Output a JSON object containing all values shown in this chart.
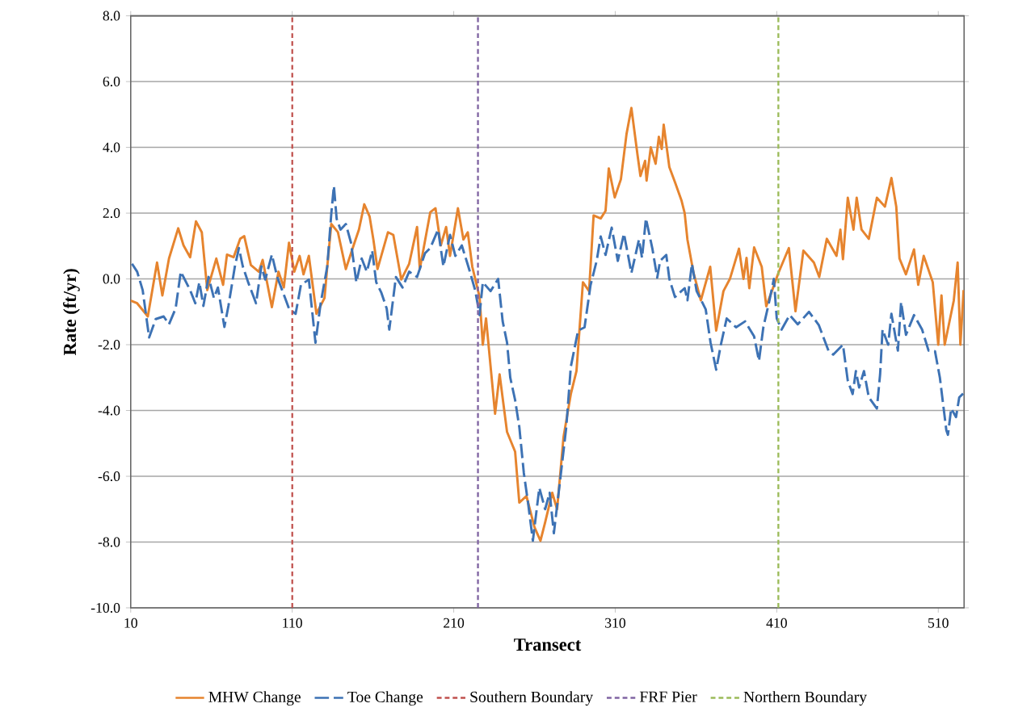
{
  "chart_data": {
    "type": "line",
    "xlabel": "Transect",
    "ylabel": "Rate (ft/yr)",
    "xlim": [
      10,
      526
    ],
    "xticks": [
      10,
      110,
      210,
      310,
      410,
      510
    ],
    "ylim": [
      -10,
      8
    ],
    "yticks": [
      {
        "value": -10,
        "label": "-10.0"
      },
      {
        "value": -8,
        "label": "-8.0"
      },
      {
        "value": -6,
        "label": "-6.0"
      },
      {
        "value": -4,
        "label": "-4.0"
      },
      {
        "value": -2,
        "label": "-2.0"
      },
      {
        "value": 0,
        "label": "0.0"
      },
      {
        "value": 2,
        "label": "2.0"
      },
      {
        "value": 4,
        "label": "4.0"
      },
      {
        "value": 6,
        "label": "6.0"
      },
      {
        "value": 8,
        "label": "8.0"
      }
    ],
    "grid": "y",
    "legend": "bottom",
    "marker": "none",
    "series": [
      {
        "name": "MHW Change",
        "color": "#e6842e",
        "line_style": "solid",
        "x": [
          10,
          14,
          20.6,
          26.3,
          29.6,
          33.7,
          39.4,
          42.7,
          46.8,
          50.4,
          54,
          57.4,
          63,
          67.2,
          69.6,
          73.7,
          77.8,
          80.3,
          84.4,
          89.3,
          91.7,
          97.4,
          101.5,
          104.8,
          108,
          111.3,
          114.6,
          117,
          120.3,
          125,
          130,
          131.7,
          134.2,
          138.3,
          143.2,
          148,
          151.3,
          154.6,
          157.9,
          160.3,
          162.8,
          169.3,
          172.6,
          177.5,
          182.4,
          187.3,
          189,
          195.5,
          198.7,
          202,
          205.3,
          207.7,
          212.6,
          216,
          218.7,
          221.5,
          226,
          228,
          230,
          235.6,
          238.4,
          243,
          248,
          250.6,
          255,
          260,
          263.7,
          266.6,
          271,
          274,
          278,
          282.5,
          286,
          290,
          293.8,
          296.6,
          301,
          304,
          306,
          309.7,
          313.5,
          317,
          320,
          323.8,
          325.6,
          328.5,
          329.4,
          332,
          335,
          337,
          338.8,
          340,
          343.5,
          347,
          351,
          353,
          354.7,
          358.5,
          363,
          368.8,
          372.5,
          377,
          381,
          386.6,
          389.4,
          391.3,
          393,
          396,
          400.7,
          403.5,
          407,
          411,
          417.5,
          421.6,
          426.5,
          433,
          436.3,
          441,
          447,
          449.4,
          451,
          454,
          457.5,
          459.5,
          462.5,
          467,
          472,
          477,
          481,
          484,
          486,
          490,
          495,
          497.6,
          501,
          506.6,
          510,
          512,
          514,
          519.6,
          522,
          523.7,
          525.7
        ],
        "values": [
          -0.66,
          -0.74,
          -1.14,
          0.5,
          -0.5,
          0.62,
          1.54,
          1.02,
          0.66,
          1.75,
          1.42,
          -0.34,
          0.62,
          -0.18,
          0.74,
          0.66,
          1.22,
          1.3,
          0.42,
          0.22,
          0.58,
          -0.86,
          0.22,
          -0.26,
          1.1,
          0.22,
          0.7,
          0.14,
          0.7,
          -1.06,
          -0.58,
          0.38,
          1.67,
          1.42,
          0.3,
          1.02,
          1.5,
          2.27,
          1.9,
          1.18,
          0.3,
          1.42,
          1.34,
          -0.02,
          0.46,
          1.58,
          0.3,
          2.03,
          2.15,
          1.02,
          1.58,
          0.7,
          2.15,
          1.2,
          1.42,
          0.37,
          -0.55,
          -2.0,
          -1.2,
          -4.1,
          -2.9,
          -4.65,
          -5.25,
          -6.8,
          -6.6,
          -7.55,
          -7.96,
          -7.4,
          -6.5,
          -7.0,
          -4.8,
          -3.5,
          -2.8,
          -0.1,
          -0.37,
          1.93,
          1.84,
          2.07,
          3.36,
          2.48,
          3.03,
          4.41,
          5.2,
          3.77,
          3.13,
          3.59,
          2.99,
          4.0,
          3.5,
          4.32,
          3.95,
          4.69,
          3.4,
          2.94,
          2.39,
          2.0,
          1.2,
          0.18,
          -0.65,
          0.37,
          -1.57,
          -0.37,
          0.0,
          0.92,
          0.0,
          0.64,
          -0.28,
          0.96,
          0.37,
          -0.83,
          -0.37,
          0.18,
          0.94,
          -0.98,
          0.86,
          0.5,
          0.06,
          1.22,
          0.7,
          1.5,
          0.6,
          2.47,
          1.5,
          2.47,
          1.5,
          1.22,
          2.47,
          2.2,
          3.07,
          2.2,
          0.62,
          0.14,
          0.9,
          -0.18,
          0.7,
          -0.1,
          -2.0,
          -0.5,
          -2.0,
          -0.66,
          0.5,
          -2.0,
          -0.34
        ]
      },
      {
        "name": "Toe Change",
        "color": "#3d72b4",
        "line_style": "dashed",
        "x": [
          10.8,
          14,
          17.4,
          21.4,
          25.5,
          30.4,
          33.7,
          37.8,
          41,
          46.8,
          50,
          52.5,
          55,
          58.2,
          61.5,
          64,
          68,
          70.5,
          74.5,
          77,
          79.4,
          82.7,
          87.6,
          90.9,
          93.3,
          97.4,
          100.7,
          105.6,
          108,
          112.1,
          115.4,
          120.3,
          124.4,
          127.6,
          131.7,
          134.2,
          135.8,
          137.5,
          139.9,
          143.2,
          146.4,
          149.7,
          153,
          156.2,
          159.5,
          162,
          165.2,
          168.5,
          170.1,
          174.2,
          178.3,
          182.4,
          187.3,
          192.2,
          195.5,
          200.3,
          203.6,
          207.7,
          211,
          215,
          219.7,
          223.4,
          226,
          228,
          232.8,
          237.5,
          240.3,
          243,
          245,
          248,
          250.6,
          253.4,
          256,
          259,
          263,
          266.6,
          269.4,
          272,
          276,
          279.7,
          282.5,
          287,
          291,
          294.7,
          298.5,
          301,
          304,
          307.8,
          311.6,
          315.4,
          320,
          324.7,
          326.6,
          329,
          333,
          336,
          337.8,
          341.6,
          343.5,
          347,
          353,
          354.7,
          357.5,
          360.4,
          366,
          369,
          372.5,
          375.4,
          379,
          384.8,
          390.4,
          396,
          399,
          401.7,
          405.5,
          408.2,
          410,
          413,
          418,
          423,
          430,
          436,
          442,
          445,
          451,
          454,
          457,
          459,
          461,
          464,
          467,
          472,
          474,
          475.5,
          479,
          481,
          485,
          487,
          490,
          495,
          500,
          504,
          508,
          511,
          515,
          516,
          518,
          521,
          523,
          526
        ],
        "values": [
          0.46,
          0.22,
          -0.34,
          -1.78,
          -1.22,
          -1.14,
          -1.38,
          -0.9,
          0.22,
          -0.34,
          -0.74,
          -0.1,
          -0.82,
          0.06,
          -0.58,
          -0.26,
          -1.46,
          -0.82,
          0.38,
          0.94,
          0.38,
          -0.1,
          -0.74,
          0.38,
          -0.02,
          0.74,
          0.06,
          -0.58,
          -0.9,
          -1.06,
          -0.18,
          -0.02,
          -1.94,
          -0.74,
          0.38,
          1.99,
          2.83,
          1.83,
          1.5,
          1.67,
          1.1,
          -0.1,
          0.62,
          0.22,
          0.86,
          -0.1,
          -0.42,
          -0.9,
          -1.54,
          0.06,
          -0.26,
          0.22,
          0.06,
          0.78,
          0.94,
          1.5,
          0.38,
          1.34,
          0.7,
          1.02,
          0.27,
          -0.37,
          -1.1,
          -0.1,
          -0.37,
          0.0,
          -1.29,
          -1.93,
          -3.0,
          -3.68,
          -4.5,
          -5.9,
          -6.8,
          -7.96,
          -6.35,
          -7.0,
          -6.5,
          -7.73,
          -6.07,
          -4.5,
          -2.67,
          -1.57,
          -1.47,
          -0.19,
          0.55,
          1.29,
          0.73,
          1.56,
          0.55,
          1.38,
          0.18,
          1.2,
          0.64,
          1.84,
          0.92,
          0.04,
          0.55,
          0.73,
          0.0,
          -0.55,
          -0.28,
          -0.65,
          0.46,
          -0.37,
          -0.92,
          -1.93,
          -2.76,
          -2.0,
          -1.2,
          -1.47,
          -1.29,
          -1.75,
          -2.49,
          -1.47,
          -0.65,
          0.0,
          -1.2,
          -1.54,
          -1.1,
          -1.38,
          -1.0,
          -1.4,
          -2.18,
          -2.3,
          -2.0,
          -3.1,
          -3.5,
          -2.8,
          -3.3,
          -2.8,
          -3.6,
          -3.94,
          -2.9,
          -1.54,
          -2.0,
          -1.06,
          -2.18,
          -0.7,
          -1.7,
          -1.1,
          -1.54,
          -2.18,
          -2.2,
          -3.0,
          -4.6,
          -4.74,
          -3.94,
          -4.2,
          -3.6,
          -3.46
        ]
      }
    ],
    "ref_lines": [
      {
        "axis": "x",
        "value": 110,
        "label": "Southern Boundary",
        "color": "#c0504d",
        "line_style": "dashed"
      },
      {
        "axis": "x",
        "value": 225,
        "label": "FRF Pier",
        "color": "#8064a2",
        "line_style": "dashed"
      },
      {
        "axis": "x",
        "value": 411,
        "label": "Northern Boundary",
        "color": "#9bbb59",
        "line_style": "dashed"
      }
    ]
  }
}
